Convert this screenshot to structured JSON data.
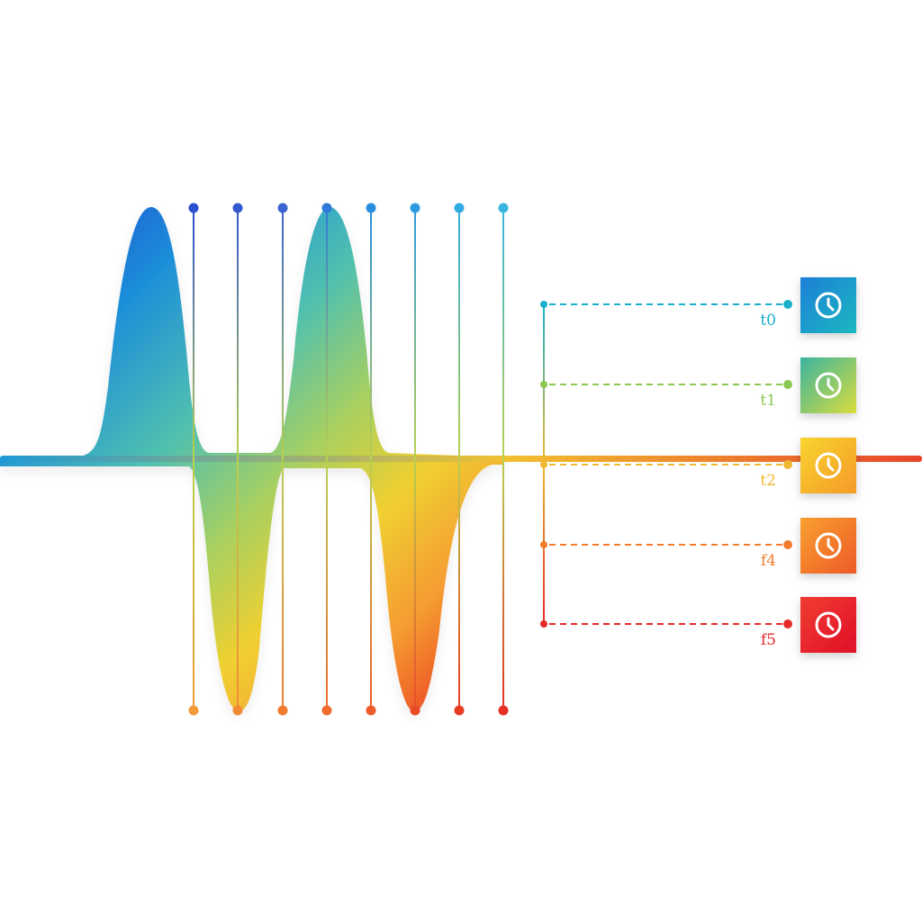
{
  "colors": {
    "wave_gradient": [
      "#1a3fcf",
      "#1e8fd9",
      "#4fc0b0",
      "#a8d060",
      "#f0d030",
      "#f59a30",
      "#e82020"
    ],
    "sample_lines": [
      "#2a4fd0",
      "#3357cc",
      "#3a64cf",
      "#2f7ad8",
      "#2a8ee0",
      "#2c9ce0",
      "#30aadf",
      "#39b4df"
    ],
    "sample_dots_bottom": [
      "#f39a3a",
      "#f28a34",
      "#f07b30",
      "#ee6d2d",
      "#ec5d2a",
      "#ea4b27",
      "#e83c25",
      "#e53025"
    ],
    "baseline": [
      "#1f9ad6",
      "#f2c030",
      "#e8452a"
    ]
  },
  "timestamps": [
    {
      "label": "t0",
      "color": "#1ab0c9",
      "box_colors": [
        "#1e7fd8",
        "#1fb8c0"
      ],
      "icon": "clock-icon"
    },
    {
      "label": "t1",
      "color": "#8cc850",
      "box_colors": [
        "#3cb5a0",
        "#d8dc3c"
      ],
      "icon": "clock-icon"
    },
    {
      "label": "t2",
      "color": "#f0b830",
      "box_colors": [
        "#f8d430",
        "#f59a28"
      ],
      "icon": "clock-icon"
    },
    {
      "label": "f4",
      "color": "#f07c2c",
      "box_colors": [
        "#f8a030",
        "#ee5a28"
      ],
      "icon": "clock-icon"
    },
    {
      "label": "f5",
      "color": "#e42a2a",
      "box_colors": [
        "#f03c30",
        "#e0102a"
      ],
      "icon": "clock-icon"
    }
  ]
}
